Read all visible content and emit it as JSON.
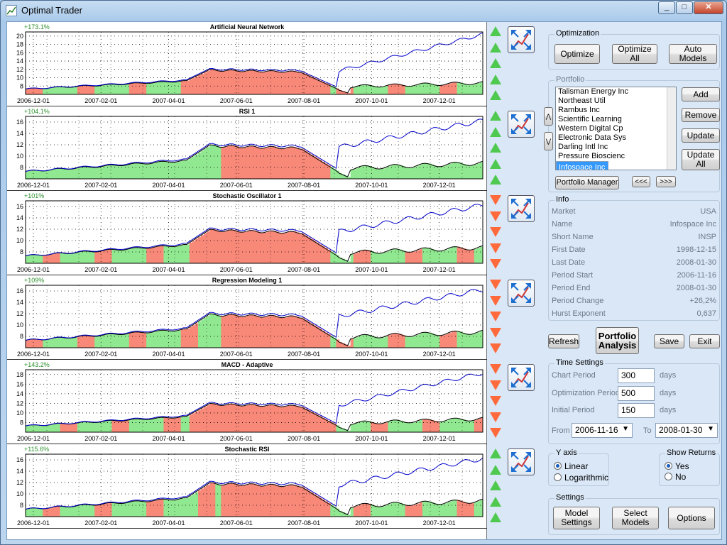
{
  "window": {
    "title": "Optimal Trader"
  },
  "colors": {
    "equity_line": "#0000cc",
    "price_up": "#90e890",
    "price_down": "#f88878",
    "arrow_up": "#4fc94f",
    "arrow_down": "#ff6a3c"
  },
  "x_labels": [
    "2006-12-01",
    "2007-02-01",
    "2007-04-01",
    "2007-06-01",
    "2007-08-01",
    "2007-10-01",
    "2007-12-01"
  ],
  "panels": [
    {
      "title": "Artificial Neural Network",
      "return": "+173.1%",
      "yticks": [
        "20",
        "18",
        "16",
        "14",
        "12",
        "10",
        "8"
      ],
      "ymin": 6,
      "ymax": 21,
      "signal": "up"
    },
    {
      "title": "RSI 1",
      "return": "+104.1%",
      "yticks": [
        "16",
        "14",
        "12",
        "10",
        "8"
      ],
      "ymin": 6,
      "ymax": 17,
      "signal": "up"
    },
    {
      "title": "Stochastic Oscillator 1",
      "return": "+101%",
      "yticks": [
        "16",
        "14",
        "12",
        "10",
        "8"
      ],
      "ymin": 6,
      "ymax": 17,
      "signal": "down"
    },
    {
      "title": "Regression Modeling 1",
      "return": "+109%",
      "yticks": [
        "16",
        "14",
        "12",
        "10",
        "8"
      ],
      "ymin": 6,
      "ymax": 17,
      "signal": "down"
    },
    {
      "title": "MACD - Adaptive",
      "return": "+143.2%",
      "yticks": [
        "18",
        "16",
        "14",
        "12",
        "10",
        "8"
      ],
      "ymin": 6,
      "ymax": 19,
      "signal": "down"
    },
    {
      "title": "Stochastic RSI",
      "return": "+115.6%",
      "yticks": [
        "16",
        "14",
        "12",
        "10",
        "8"
      ],
      "ymin": 6,
      "ymax": 17,
      "signal": "up"
    }
  ],
  "optimization": {
    "title": "Optimization",
    "optimize": "Optimize",
    "optimize_all": "Optimize All",
    "auto_models": "Auto Models"
  },
  "portfolio": {
    "title": "Portfolio",
    "items": [
      "Talisman Energy Inc",
      "Northeast Util",
      "Rambus Inc",
      "Scientific Learning",
      "Western Digital Cp",
      "Electronic Data Sys",
      "Darling Intl Inc",
      "Pressure Bioscienc",
      "Infospace Inc"
    ],
    "selected": "Infospace Inc",
    "add": "Add",
    "remove": "Remove",
    "update": "Update",
    "update_all": "Update All",
    "manager": "Portfolio Manager",
    "prev": "<<<",
    "next": ">>>"
  },
  "info": {
    "title": "Info",
    "rows": [
      {
        "label": "Market",
        "value": "USA"
      },
      {
        "label": "Name",
        "value": "Infospace Inc"
      },
      {
        "label": "Short Name",
        "value": "INSP"
      },
      {
        "label": "First Date",
        "value": "1998-12-15"
      },
      {
        "label": "Last Date",
        "value": "2008-01-30"
      },
      {
        "label": "Period Start",
        "value": "2006-11-16"
      },
      {
        "label": "Period End",
        "value": "2008-01-30"
      },
      {
        "label": "Period Change",
        "value": "+26,2%"
      },
      {
        "label": "Hurst Exponent",
        "value": "0,637"
      }
    ]
  },
  "actions": {
    "refresh": "Refresh",
    "portfolio_analysis": "Portfolio Analysis",
    "save": "Save",
    "exit": "Exit"
  },
  "time_settings": {
    "title": "Time Settings",
    "chart_period_label": "Chart Period",
    "chart_period": "300",
    "opt_period_label": "Optimization Period",
    "opt_period": "500",
    "initial_period_label": "Initial Period",
    "initial_period": "150",
    "days": "days",
    "from_label": "From",
    "from": "2006-11-16",
    "to_label": "To",
    "to": "2008-01-30"
  },
  "y_axis": {
    "title": "Y axis",
    "linear": "Linear",
    "logarithmic": "Logarithmic",
    "selected": "Linear"
  },
  "show_returns": {
    "title": "Show Returns",
    "yes": "Yes",
    "no": "No",
    "selected": "Yes"
  },
  "settings": {
    "title": "Settings",
    "model_settings": "Model Settings",
    "select_models": "Select Models",
    "options": "Options"
  }
}
